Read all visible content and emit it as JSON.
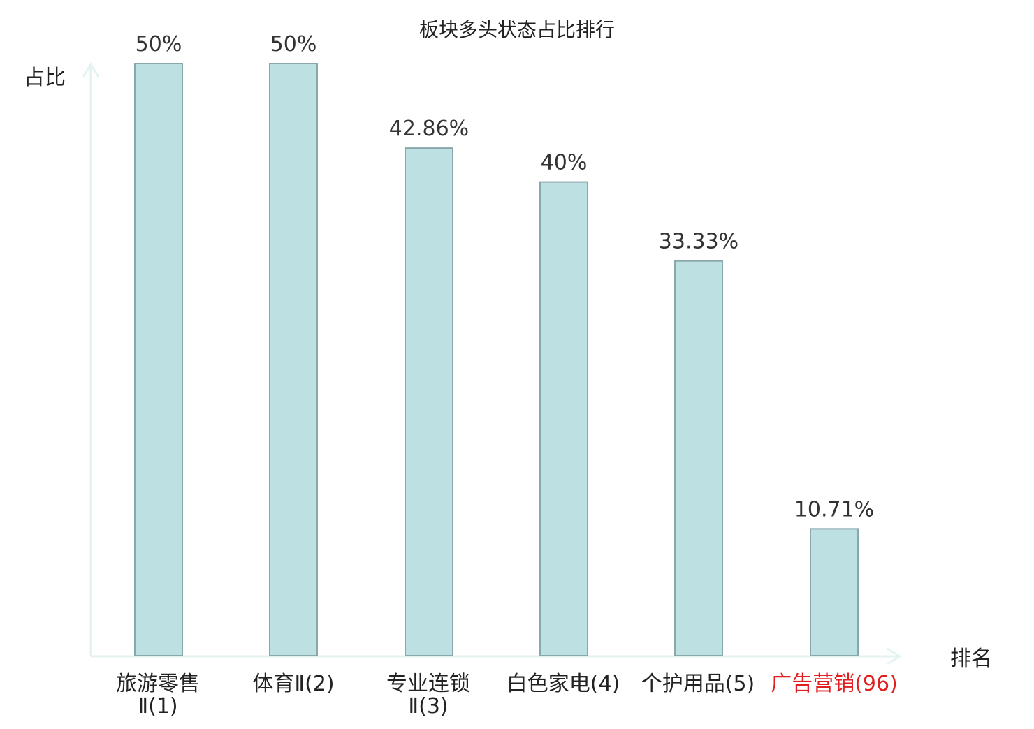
{
  "chart_data": {
    "type": "bar",
    "title": "板块多头状态占比排行",
    "ylabel": "占比",
    "xlabel": "排名",
    "ylim": [
      0,
      50
    ],
    "grid": false,
    "categories": [
      {
        "name": "旅游零售",
        "rank_text": "Ⅱ(1)",
        "highlight": false
      },
      {
        "name": "体育Ⅱ",
        "rank_text": "(2)",
        "highlight": false
      },
      {
        "name": "专业连锁",
        "rank_text": "Ⅱ(3)",
        "highlight": false
      },
      {
        "name": "白色家电",
        "rank_text": "(4)",
        "highlight": false
      },
      {
        "name": "个护用品",
        "rank_text": "(5)",
        "highlight": false
      },
      {
        "name": "广告营销",
        "rank_text": "(96)",
        "highlight": true
      }
    ],
    "values": [
      50,
      50,
      42.86,
      40,
      33.33,
      10.71
    ],
    "value_labels": [
      "50%",
      "50%",
      "42.86%",
      "40%",
      "33.33%",
      "10.71%"
    ],
    "colors": {
      "bar_fill": "#bde0e3",
      "bar_stroke": "#8aa7ab",
      "axis": "#e3f3f1",
      "text": "#222222",
      "value_text": "#333333",
      "highlight": "#e02020"
    }
  }
}
